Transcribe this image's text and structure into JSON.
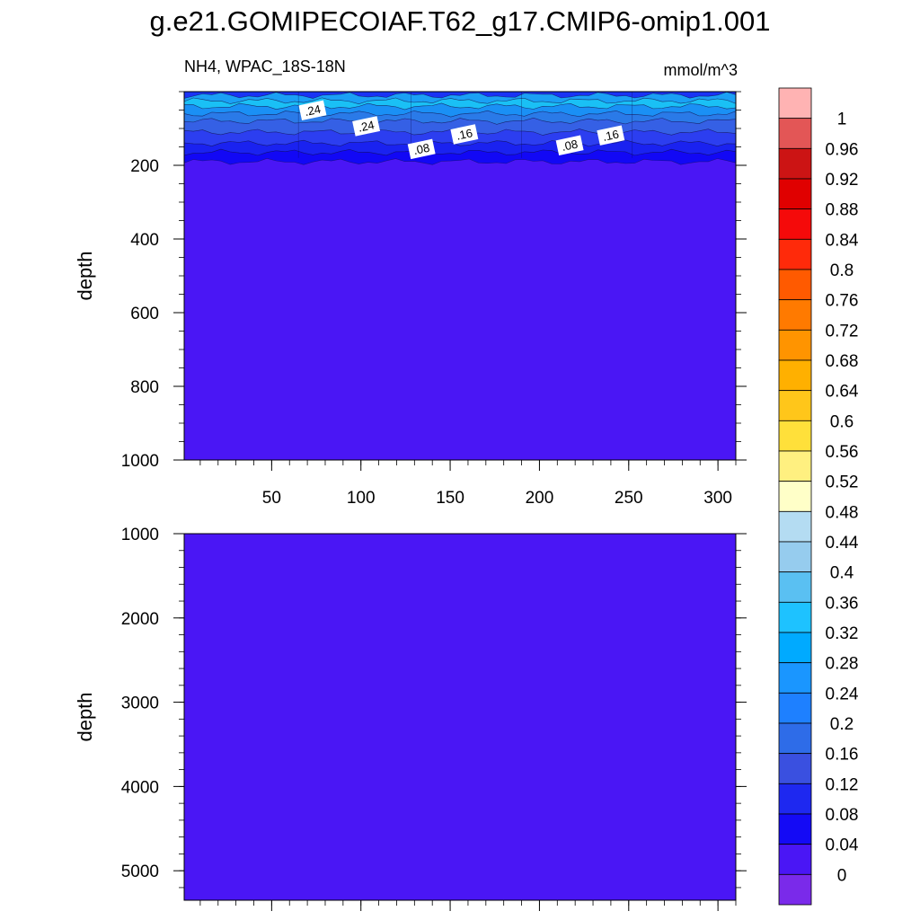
{
  "title": "g.e21.GOMIPECOIAF.T62_g17.CMIP6-omip1.001",
  "subtitle_left": "NH4, WPAC_18S-18N",
  "subtitle_right": "mmol/m^3",
  "chart_data": {
    "type": "heatmap",
    "x": {
      "range": [
        1,
        310
      ],
      "ticks": [
        50,
        100,
        150,
        200,
        250,
        300
      ],
      "minor_step": 10
    },
    "panels": [
      {
        "id": "upper",
        "ylabel": "depth",
        "ylim": [
          0,
          1000
        ],
        "inverted": true,
        "y_ticks": [
          200,
          400,
          600,
          800,
          1000
        ],
        "y_minor_step": 50,
        "show_x_tick_labels": true,
        "background_color": "#4a16f5",
        "bands": [
          {
            "depth": [
              0,
              10
            ],
            "color": "#1a33f5"
          },
          {
            "depth": [
              10,
              25
            ],
            "color": "#1aa0f5"
          },
          {
            "depth": [
              25,
              40
            ],
            "color": "#1ac0f5"
          },
          {
            "depth": [
              40,
              60
            ],
            "color": "#1a90f5"
          },
          {
            "depth": [
              60,
              80
            ],
            "color": "#2a7ae8"
          },
          {
            "depth": [
              80,
              110
            ],
            "color": "#3560e5"
          },
          {
            "depth": [
              110,
              140
            ],
            "color": "#2c3ef0"
          },
          {
            "depth": [
              140,
              165
            ],
            "color": "#1a22f0"
          },
          {
            "depth": [
              165,
              190
            ],
            "color": "#1208f5"
          }
        ],
        "contour_labels": [
          {
            "text": ".24",
            "x": 73,
            "depth": 52
          },
          {
            "text": ".24",
            "x": 103,
            "depth": 95
          },
          {
            "text": ".08",
            "x": 134,
            "depth": 157
          },
          {
            "text": ".16",
            "x": 158,
            "depth": 117
          },
          {
            "text": ".08",
            "x": 217,
            "depth": 147
          },
          {
            "text": ".16",
            "x": 240,
            "depth": 120
          }
        ]
      },
      {
        "id": "lower",
        "ylabel": "depth",
        "ylim": [
          1000,
          5350
        ],
        "inverted": true,
        "y_ticks": [
          1000,
          2000,
          3000,
          4000,
          5000
        ],
        "y_minor_step": 200,
        "show_x_tick_labels": false,
        "background_color": "#4a16f5",
        "bands": [],
        "contour_labels": []
      }
    ],
    "colorbar": {
      "labels": [
        "1",
        "0.96",
        "0.92",
        "0.88",
        "0.84",
        "0.8",
        "0.76",
        "0.72",
        "0.68",
        "0.64",
        "0.6",
        "0.56",
        "0.52",
        "0.48",
        "0.44",
        "0.4",
        "0.36",
        "0.32",
        "0.28",
        "0.24",
        "0.2",
        "0.16",
        "0.12",
        "0.08",
        "0.04",
        "0"
      ],
      "colors": [
        "#ffb3b3",
        "#e35656",
        "#cc1414",
        "#e00000",
        "#f50a0a",
        "#ff2a0a",
        "#ff5a00",
        "#ff7a00",
        "#ff9400",
        "#ffb000",
        "#ffc61a",
        "#ffe03a",
        "#fff080",
        "#ffffc8",
        "#b4dcf2",
        "#96ccee",
        "#5ac0f2",
        "#1ec2ff",
        "#00aaff",
        "#1a96ff",
        "#1e80ff",
        "#2e6ce8",
        "#3a50e0",
        "#1e28f0",
        "#140af5",
        "#4a16f5",
        "#7a2aea"
      ]
    }
  }
}
